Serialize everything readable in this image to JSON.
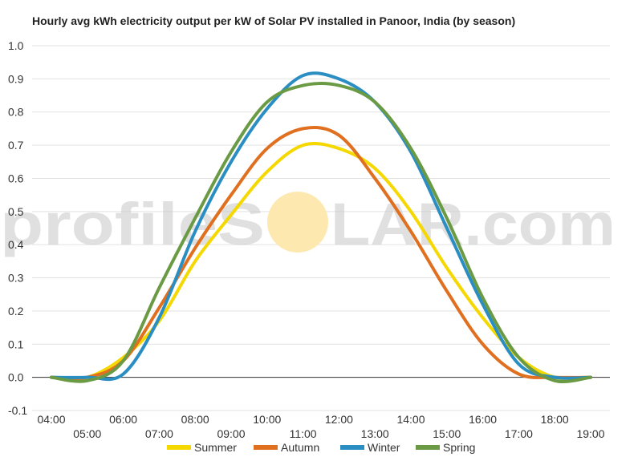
{
  "chart_data": {
    "type": "line",
    "title": "Hourly avg kWh electricity output per kW of Solar PV installed in Panoor, India (by season)",
    "xlabel": "",
    "ylabel": "",
    "ylim": [
      -0.1,
      1.0
    ],
    "yticks": [
      "1.0",
      "0.9",
      "0.8",
      "0.7",
      "0.6",
      "0.5",
      "0.4",
      "0.3",
      "0.2",
      "0.1",
      "0.0",
      "-0.1"
    ],
    "ytick_values": [
      1.0,
      0.9,
      0.8,
      0.7,
      0.6,
      0.5,
      0.4,
      0.3,
      0.2,
      0.1,
      0.0,
      -0.1
    ],
    "x": [
      "04:00",
      "05:00",
      "06:00",
      "07:00",
      "08:00",
      "09:00",
      "10:00",
      "11:00",
      "12:00",
      "13:00",
      "14:00",
      "15:00",
      "16:00",
      "17:00",
      "18:00",
      "19:00"
    ],
    "grid": true,
    "legend_position": "bottom",
    "series": [
      {
        "name": "Summer",
        "color": "#f5d800",
        "values": [
          0.0,
          0.0,
          0.06,
          0.17,
          0.35,
          0.49,
          0.62,
          0.7,
          0.69,
          0.63,
          0.5,
          0.33,
          0.18,
          0.06,
          0.0,
          0.0
        ]
      },
      {
        "name": "Autumn",
        "color": "#e07020",
        "values": [
          0.0,
          0.0,
          0.05,
          0.21,
          0.39,
          0.55,
          0.69,
          0.75,
          0.73,
          0.6,
          0.44,
          0.26,
          0.1,
          0.01,
          0.0,
          0.0
        ]
      },
      {
        "name": "Winter",
        "color": "#2a8ec2",
        "values": [
          0.0,
          0.0,
          0.01,
          0.18,
          0.44,
          0.65,
          0.81,
          0.91,
          0.9,
          0.83,
          0.68,
          0.45,
          0.22,
          0.04,
          0.0,
          0.0
        ]
      },
      {
        "name": "Spring",
        "color": "#6b9a44",
        "values": [
          0.0,
          -0.01,
          0.05,
          0.27,
          0.48,
          0.68,
          0.83,
          0.88,
          0.88,
          0.83,
          0.69,
          0.48,
          0.24,
          0.06,
          -0.01,
          0.0
        ]
      }
    ]
  },
  "watermark": {
    "text_left": "profileS",
    "text_right": "LAR.com",
    "sun_color": "#fde9b0"
  }
}
